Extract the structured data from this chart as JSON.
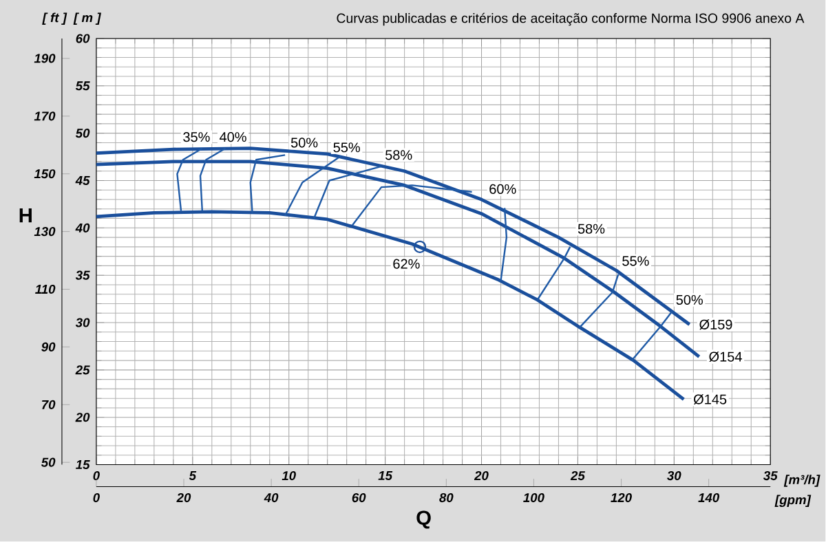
{
  "chart_data": {
    "type": "line",
    "title": "Curvas publicadas e critérios de aceitação conforme Norma ISO 9906 anexo A",
    "xlabel": "[m³/h]",
    "ylabel": "[ m ]",
    "y2label": "[ ft ]",
    "x2label": "[gpm]",
    "xlim": [
      0,
      35
    ],
    "xticks": [
      0,
      5,
      10,
      15,
      20,
      25,
      30,
      35
    ],
    "ylim": [
      15,
      60
    ],
    "yticks": [
      15,
      20,
      25,
      30,
      35,
      40,
      45,
      50,
      55,
      60
    ],
    "y2lim": [
      49.2,
      196.9
    ],
    "y2ticks": [
      50,
      70,
      90,
      110,
      130,
      150,
      170,
      190
    ],
    "x2lim": [
      0,
      154.1
    ],
    "x2ticks": [
      0,
      20,
      40,
      60,
      80,
      100,
      120,
      140
    ],
    "grid": true,
    "marker": "none",
    "line_style": "solid",
    "series": [
      {
        "name": "Ø159",
        "color": "#1a4f9c",
        "x": [
          0,
          4,
          8,
          12,
          16,
          20,
          24,
          27,
          30.8
        ],
        "values": [
          47.9,
          48.3,
          48.4,
          47.8,
          46.0,
          43.0,
          39.0,
          35.5,
          29.8
        ]
      },
      {
        "name": "Ø154",
        "color": "#1a4f9c",
        "x": [
          0,
          4,
          8,
          12,
          16,
          20,
          24.3,
          26.9,
          29.3,
          31.3
        ],
        "values": [
          46.7,
          47.0,
          47.0,
          46.3,
          44.5,
          41.5,
          36.8,
          33.2,
          29.6,
          26.4
        ]
      },
      {
        "name": "Ø145",
        "color": "#1a4f9c",
        "x": [
          0,
          3,
          6,
          9,
          12,
          16.4,
          20.9,
          22.9,
          25.1,
          27.9,
          30.5
        ],
        "values": [
          41.2,
          41.6,
          41.7,
          41.6,
          40.9,
          38.3,
          34.5,
          32.4,
          29.5,
          26.0,
          21.9
        ]
      },
      {
        "color": "#1f5aa6",
        "x": [
          4.4,
          4.2,
          4.5,
          5.5
        ],
        "values": [
          41.8,
          45.7,
          47.2,
          48.4
        ]
      },
      {
        "color": "#1f5aa6",
        "x": [
          5.5,
          5.4,
          5.7,
          6.7
        ],
        "values": [
          41.8,
          45.5,
          47.2,
          48.4
        ]
      },
      {
        "color": "#1f5aa6",
        "x": [
          8.1,
          8.0,
          8.3,
          9.8
        ],
        "values": [
          41.6,
          44.8,
          47.2,
          47.7
        ]
      },
      {
        "color": "#1f5aa6",
        "x": [
          9.8,
          10.7,
          12.7
        ],
        "values": [
          41.3,
          44.8,
          47.6
        ]
      },
      {
        "color": "#1f5aa6",
        "x": [
          11.3,
          12.1,
          14.8
        ],
        "values": [
          41.0,
          45.0,
          46.5
        ]
      },
      {
        "color": "#1f5aa6",
        "x": [
          13.3,
          14.8,
          16.4,
          19.5
        ],
        "values": [
          40.3,
          44.3,
          44.5,
          43.8
        ]
      },
      {
        "color": "#1f5aa6",
        "x": [
          21.2,
          21.3,
          21.0
        ],
        "values": [
          42.1,
          39.0,
          34.4
        ]
      },
      {
        "color": "#1f5aa6",
        "x": [
          24.6,
          24.3,
          22.9
        ],
        "values": [
          38.0,
          36.8,
          32.4
        ]
      },
      {
        "color": "#1f5aa6",
        "x": [
          27.1,
          26.8,
          25.1
        ],
        "values": [
          35.1,
          33.2,
          29.5
        ]
      },
      {
        "color": "#1f5aa6",
        "x": [
          29.9,
          29.3,
          27.8
        ],
        "values": [
          31.2,
          29.6,
          26.0
        ]
      },
      {
        "type": "scatter",
        "marker": "circle",
        "color": "#1a4f9c",
        "x": [
          16.8
        ],
        "values": [
          38.0
        ]
      }
    ],
    "annotations": [
      "H",
      "Q",
      {
        "text": "35%",
        "x": 5.2,
        "y": 49.6
      },
      {
        "text": "40%",
        "x": 7.1,
        "y": 49.6
      },
      {
        "text": "50%",
        "x": 10.8,
        "y": 49.0
      },
      {
        "text": "55%",
        "x": 13.0,
        "y": 48.5
      },
      {
        "text": "58%",
        "x": 15.7,
        "y": 47.7
      },
      {
        "text": "60%",
        "x": 21.1,
        "y": 44.1
      },
      {
        "text": "58%",
        "x": 25.7,
        "y": 39.9
      },
      {
        "text": "55%",
        "x": 28.0,
        "y": 36.5
      },
      {
        "text": "50%",
        "x": 30.8,
        "y": 32.4
      },
      {
        "text": "62%",
        "x": 16.1,
        "y": 36.2
      }
    ]
  }
}
